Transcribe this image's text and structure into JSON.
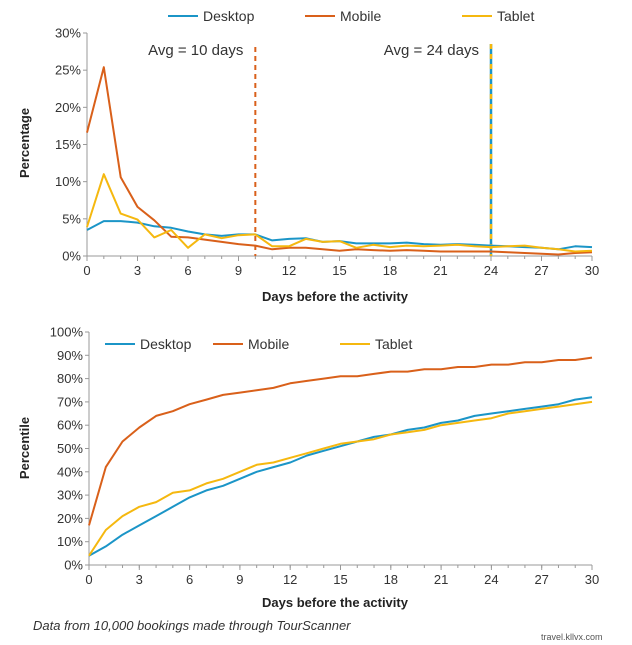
{
  "chart_data": [
    {
      "type": "line",
      "title": "",
      "xlabel": "Days before the activity",
      "ylabel": "Percentage",
      "xlim": [
        0,
        30
      ],
      "ylim": [
        0,
        30
      ],
      "x_ticks": [
        0,
        3,
        6,
        9,
        12,
        15,
        18,
        21,
        24,
        27,
        30
      ],
      "y_ticks": [
        "0%",
        "5%",
        "10%",
        "15%",
        "20%",
        "25%",
        "30%"
      ],
      "legend": "top",
      "grid": false,
      "x": [
        0,
        1,
        2,
        3,
        4,
        5,
        6,
        7,
        8,
        9,
        10,
        11,
        12,
        13,
        14,
        15,
        16,
        17,
        18,
        19,
        20,
        21,
        22,
        23,
        24,
        25,
        26,
        27,
        28,
        29,
        30
      ],
      "series": [
        {
          "name": "Desktop",
          "color": "#1b95c7",
          "values": [
            3.5,
            4.7,
            4.7,
            4.5,
            4.0,
            3.8,
            3.3,
            2.9,
            2.7,
            2.9,
            2.9,
            2.1,
            2.3,
            2.4,
            1.9,
            2.0,
            1.7,
            1.7,
            1.7,
            1.8,
            1.6,
            1.5,
            1.6,
            1.5,
            1.4,
            1.3,
            1.2,
            1.1,
            0.9,
            1.3,
            1.2
          ]
        },
        {
          "name": "Mobile",
          "color": "#d9601a",
          "values": [
            16.6,
            25.4,
            10.6,
            6.6,
            4.8,
            2.6,
            2.5,
            2.2,
            1.9,
            1.6,
            1.4,
            0.9,
            1.1,
            1.1,
            0.9,
            0.7,
            0.9,
            0.8,
            0.7,
            0.8,
            0.7,
            0.6,
            0.6,
            0.6,
            0.6,
            0.5,
            0.4,
            0.3,
            0.2,
            0.4,
            0.5
          ]
        },
        {
          "name": "Tablet",
          "color": "#f5b80f",
          "values": [
            3.9,
            11.0,
            5.7,
            4.9,
            2.5,
            3.5,
            1.1,
            2.9,
            2.4,
            2.8,
            2.9,
            1.3,
            1.3,
            2.3,
            1.9,
            2.0,
            1.1,
            1.5,
            1.2,
            1.4,
            1.3,
            1.4,
            1.5,
            1.3,
            1.2,
            1.3,
            1.4,
            1.1,
            0.9,
            0.6,
            0.7
          ]
        }
      ],
      "annotations": [
        {
          "text": "Avg = 10 days",
          "x": 10,
          "style": "dashed",
          "colors": [
            "#d9601a"
          ]
        },
        {
          "text": "Avg = 24 days",
          "x": 24,
          "style": "dashed",
          "colors": [
            "#1b95c7",
            "#f5b80f"
          ]
        }
      ]
    },
    {
      "type": "line",
      "title": "",
      "xlabel": "Days before the activity",
      "ylabel": "Percentile",
      "xlim": [
        0,
        30
      ],
      "ylim": [
        0,
        100
      ],
      "x_ticks": [
        0,
        3,
        6,
        9,
        12,
        15,
        18,
        21,
        24,
        27,
        30
      ],
      "y_ticks": [
        "0%",
        "10%",
        "20%",
        "30%",
        "40%",
        "50%",
        "60%",
        "70%",
        "80%",
        "90%",
        "100%"
      ],
      "legend": "top-left",
      "grid": false,
      "x": [
        0,
        1,
        2,
        3,
        4,
        5,
        6,
        7,
        8,
        9,
        10,
        11,
        12,
        13,
        14,
        15,
        16,
        17,
        18,
        19,
        20,
        21,
        22,
        23,
        24,
        25,
        26,
        27,
        28,
        29,
        30
      ],
      "series": [
        {
          "name": "Desktop",
          "color": "#1b95c7",
          "values": [
            4,
            8,
            13,
            17,
            21,
            25,
            29,
            32,
            34,
            37,
            40,
            42,
            44,
            47,
            49,
            51,
            53,
            55,
            56,
            58,
            59,
            61,
            62,
            64,
            65,
            66,
            67,
            68,
            69,
            71,
            72
          ]
        },
        {
          "name": "Mobile",
          "color": "#d9601a",
          "values": [
            17,
            42,
            53,
            59,
            64,
            66,
            69,
            71,
            73,
            74,
            75,
            76,
            78,
            79,
            80,
            81,
            81,
            82,
            83,
            83,
            84,
            84,
            85,
            85,
            86,
            86,
            87,
            87,
            88,
            88,
            89
          ]
        },
        {
          "name": "Tablet",
          "color": "#f5b80f",
          "values": [
            4,
            15,
            21,
            25,
            27,
            31,
            32,
            35,
            37,
            40,
            43,
            44,
            46,
            48,
            50,
            52,
            53,
            54,
            56,
            57,
            58,
            60,
            61,
            62,
            63,
            65,
            66,
            67,
            68,
            69,
            70
          ]
        }
      ],
      "annotations": []
    }
  ],
  "footer": {
    "note": "Data from 10,000 bookings made through TourScanner",
    "credit": "travel.kllvx.com"
  }
}
